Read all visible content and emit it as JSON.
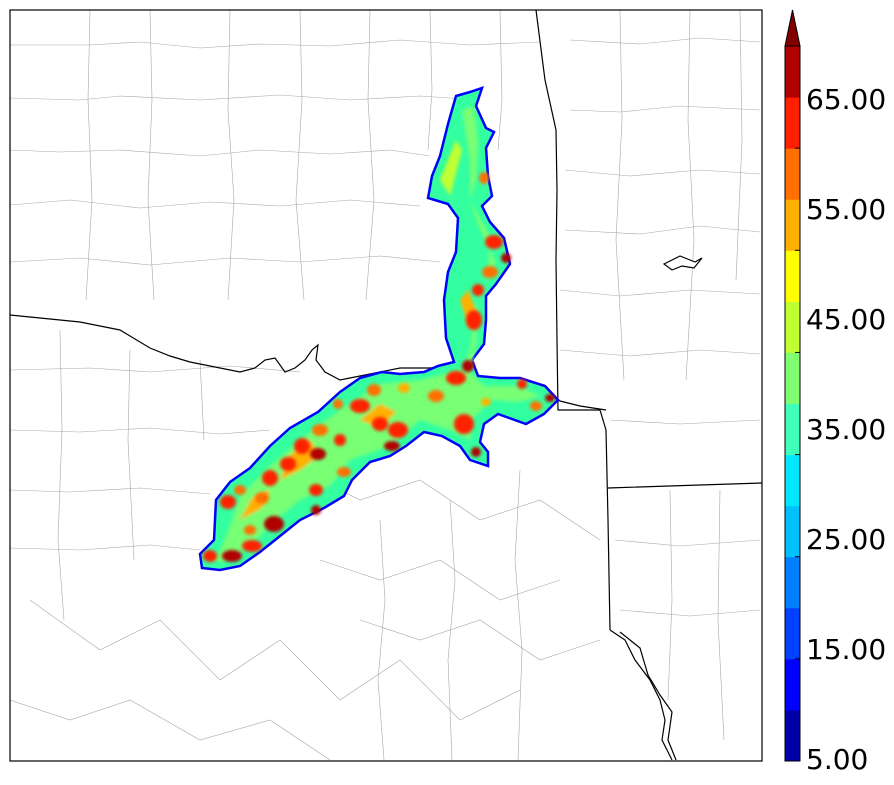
{
  "colorbar": {
    "tick_labels": [
      "65.00",
      "55.00",
      "45.00",
      "35.00",
      "25.00",
      "15.00",
      "5.00"
    ],
    "levels": [
      5,
      10,
      15,
      20,
      25,
      30,
      35,
      40,
      45,
      50,
      55,
      60,
      65,
      70
    ],
    "colors": [
      "#0000a8",
      "#0000ff",
      "#0040ff",
      "#0080ff",
      "#00c0ff",
      "#00e8ff",
      "#40ffb8",
      "#80ff70",
      "#c0ff30",
      "#ffff00",
      "#ffb000",
      "#ff7000",
      "#ff2000",
      "#b00000"
    ],
    "extend": "max",
    "extend_color": "#800000"
  },
  "map": {
    "state_line_color": "#000000",
    "county_line_color": "#a0a0a0",
    "field_type": "filled-contour swath"
  }
}
